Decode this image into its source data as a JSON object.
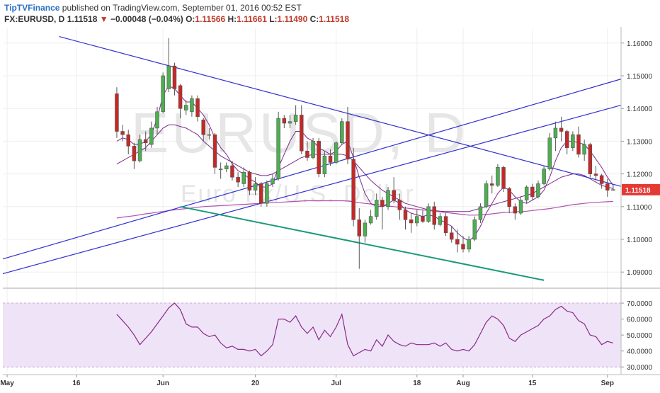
{
  "header": {
    "author": "TipTVFinance",
    "published_text": " published on TradingView.com, September 01, 2016 00:52 EST",
    "symbol": "FX:EURUSD, D",
    "last": "1.11518",
    "change_arrow": "▼",
    "change": "−0.00048 (−0.04%)",
    "o_label": "O:",
    "o_value": "1.11566",
    "h_label": "H:",
    "h_value": "1.11661",
    "l_label": "L:",
    "l_value": "1.11490",
    "c_label": "C:",
    "c_value": "1.11518"
  },
  "watermark": {
    "main": "EURUSD, D",
    "sub": "Euro Fx/U.S. Dollar"
  },
  "colors": {
    "up": "#4caf50",
    "down": "#c62828",
    "trend_blue": "#3030d0",
    "trend_green": "#1a9a7a",
    "ma_fast": "#7a2a8a",
    "ma_slow": "#b050b0",
    "rsi_line": "#8a2a8a",
    "rsi_band": "#efe3f7",
    "price_badge": "#e53935"
  },
  "chart_data": {
    "type": "candlestick",
    "price_axis": {
      "ticks": [
        "1.16000",
        "1.15000",
        "1.14000",
        "1.13000",
        "1.12000",
        "1.11000",
        "1.10000",
        "1.09000"
      ],
      "tick_values": [
        1.16,
        1.15,
        1.14,
        1.13,
        1.12,
        1.11,
        1.1,
        1.09
      ],
      "range": [
        1.0855,
        1.1645
      ],
      "current_label": "1.11518",
      "current_value": 1.11518
    },
    "x_axis": {
      "labels": [
        "May",
        "16",
        "Jun",
        "20",
        "Jul",
        "18",
        "Aug",
        "15",
        "Sep"
      ],
      "label_index": [
        0,
        12,
        27,
        43,
        57,
        71,
        79,
        91,
        104
      ]
    },
    "ohlc": [
      [
        1.1445,
        1.1465,
        1.131,
        1.133
      ],
      [
        1.133,
        1.135,
        1.13,
        1.132
      ],
      [
        1.132,
        1.1335,
        1.126,
        1.1285
      ],
      [
        1.1285,
        1.1295,
        1.1215,
        1.124
      ],
      [
        1.124,
        1.132,
        1.1235,
        1.1305
      ],
      [
        1.1305,
        1.133,
        1.127,
        1.1295
      ],
      [
        1.129,
        1.136,
        1.128,
        1.134
      ],
      [
        1.134,
        1.1405,
        1.132,
        1.139
      ],
      [
        1.139,
        1.151,
        1.1385,
        1.15
      ],
      [
        1.146,
        1.1615,
        1.145,
        1.153
      ],
      [
        1.153,
        1.154,
        1.144,
        1.146
      ],
      [
        1.147,
        1.1475,
        1.137,
        1.14
      ],
      [
        1.1395,
        1.1425,
        1.138,
        1.141
      ],
      [
        1.139,
        1.144,
        1.1375,
        1.143
      ],
      [
        1.143,
        1.144,
        1.136,
        1.1375
      ],
      [
        1.1365,
        1.137,
        1.13,
        1.132
      ],
      [
        1.132,
        1.134,
        1.1305,
        1.132
      ],
      [
        1.132,
        1.1325,
        1.12,
        1.122
      ],
      [
        1.1215,
        1.1235,
        1.1185,
        1.1215
      ],
      [
        1.1215,
        1.1235,
        1.1205,
        1.1225
      ],
      [
        1.1225,
        1.124,
        1.118,
        1.119
      ],
      [
        1.119,
        1.1205,
        1.116,
        1.1175
      ],
      [
        1.117,
        1.122,
        1.116,
        1.1205
      ],
      [
        1.1205,
        1.121,
        1.1135,
        1.115
      ],
      [
        1.115,
        1.119,
        1.1135,
        1.117
      ],
      [
        1.117,
        1.1175,
        1.11,
        1.111
      ],
      [
        1.111,
        1.118,
        1.11,
        1.117
      ],
      [
        1.117,
        1.12,
        1.116,
        1.1185
      ],
      [
        1.1185,
        1.139,
        1.118,
        1.137
      ],
      [
        1.137,
        1.138,
        1.134,
        1.1355
      ],
      [
        1.1355,
        1.138,
        1.134,
        1.136
      ],
      [
        1.136,
        1.141,
        1.135,
        1.138
      ],
      [
        1.138,
        1.141,
        1.126,
        1.127
      ],
      [
        1.127,
        1.13,
        1.124,
        1.125
      ],
      [
        1.125,
        1.131,
        1.1245,
        1.13
      ],
      [
        1.13,
        1.131,
        1.119,
        1.12
      ],
      [
        1.12,
        1.127,
        1.119,
        1.1255
      ],
      [
        1.1255,
        1.1275,
        1.1225,
        1.1235
      ],
      [
        1.1235,
        1.13,
        1.123,
        1.1295
      ],
      [
        1.1295,
        1.137,
        1.129,
        1.136
      ],
      [
        1.136,
        1.1405,
        1.123,
        1.1245
      ],
      [
        1.1245,
        1.128,
        1.104,
        1.106
      ],
      [
        1.106,
        1.1095,
        1.091,
        1.101
      ],
      [
        1.101,
        1.106,
        1.099,
        1.105
      ],
      [
        1.105,
        1.109,
        1.1045,
        1.107
      ],
      [
        1.107,
        1.114,
        1.106,
        1.112
      ],
      [
        1.112,
        1.113,
        1.103,
        1.11
      ],
      [
        1.11,
        1.116,
        1.109,
        1.115
      ],
      [
        1.115,
        1.119,
        1.111,
        1.112
      ],
      [
        1.112,
        1.114,
        1.106,
        1.109
      ],
      [
        1.109,
        1.11,
        1.103,
        1.106
      ],
      [
        1.106,
        1.108,
        1.102,
        1.105
      ],
      [
        1.105,
        1.109,
        1.104,
        1.107
      ],
      [
        1.107,
        1.109,
        1.105,
        1.1055
      ],
      [
        1.1055,
        1.111,
        1.105,
        1.11
      ],
      [
        1.11,
        1.1115,
        1.103,
        1.1045
      ],
      [
        1.1045,
        1.108,
        1.104,
        1.107
      ],
      [
        1.107,
        1.108,
        1.101,
        1.102
      ],
      [
        1.102,
        1.104,
        1.099,
        1.1
      ],
      [
        1.1,
        1.103,
        1.096,
        1.0985
      ],
      [
        1.0985,
        1.101,
        1.096,
        1.097
      ],
      [
        1.097,
        1.101,
        1.096,
        1.1
      ],
      [
        1.1,
        1.107,
        1.0995,
        1.106
      ],
      [
        1.106,
        1.111,
        1.105,
        1.11
      ],
      [
        1.11,
        1.118,
        1.1095,
        1.117
      ],
      [
        1.117,
        1.1195,
        1.114,
        1.1165
      ],
      [
        1.1165,
        1.123,
        1.116,
        1.122
      ],
      [
        1.122,
        1.1225,
        1.1145,
        1.1155
      ],
      [
        1.1155,
        1.116,
        1.108,
        1.11
      ],
      [
        1.11,
        1.111,
        1.106,
        1.108
      ],
      [
        1.108,
        1.113,
        1.1075,
        1.112
      ],
      [
        1.112,
        1.1165,
        1.111,
        1.116
      ],
      [
        1.116,
        1.117,
        1.112,
        1.113
      ],
      [
        1.113,
        1.118,
        1.1125,
        1.117
      ],
      [
        1.117,
        1.1225,
        1.1165,
        1.1215
      ],
      [
        1.1215,
        1.1325,
        1.121,
        1.131
      ],
      [
        1.131,
        1.136,
        1.127,
        1.134
      ],
      [
        1.134,
        1.1375,
        1.13,
        1.133
      ],
      [
        1.133,
        1.1335,
        1.126,
        1.128
      ],
      [
        1.128,
        1.133,
        1.127,
        1.132
      ],
      [
        1.132,
        1.1345,
        1.125,
        1.126
      ],
      [
        1.126,
        1.1305,
        1.124,
        1.129
      ],
      [
        1.129,
        1.1295,
        1.119,
        1.12
      ],
      [
        1.12,
        1.1225,
        1.118,
        1.1195
      ],
      [
        1.1195,
        1.12,
        1.1155,
        1.117
      ],
      [
        1.117,
        1.1185,
        1.113,
        1.115
      ],
      [
        1.115,
        1.1166,
        1.1149,
        1.1152
      ]
    ],
    "ma_fast": [
      1.13,
      1.131,
      1.1305,
      1.129,
      1.129,
      1.13,
      1.132,
      1.137,
      1.144,
      1.147,
      1.146,
      1.144,
      1.142,
      1.142,
      1.14,
      1.138,
      1.135,
      1.131,
      1.128,
      1.126,
      1.123,
      1.121,
      1.12,
      1.1185,
      1.1175,
      1.116,
      1.116,
      1.117,
      1.122,
      1.126,
      1.13,
      1.133,
      1.133,
      1.131,
      1.13,
      1.128,
      1.127,
      1.126,
      1.127,
      1.129,
      1.13,
      1.125,
      1.119,
      1.114,
      1.111,
      1.11,
      1.11,
      1.111,
      1.112,
      1.111,
      1.109,
      1.108,
      1.1075,
      1.107,
      1.1075,
      1.107,
      1.106,
      1.105,
      1.104,
      1.102,
      1.1005,
      1.0995,
      1.101,
      1.104,
      1.108,
      1.111,
      1.114,
      1.116,
      1.115,
      1.113,
      1.1115,
      1.111,
      1.112,
      1.113,
      1.115,
      1.119,
      1.124,
      1.128,
      1.13,
      1.13,
      1.1295,
      1.129,
      1.127,
      1.1245,
      1.122,
      1.119,
      1.1165
    ],
    "ma_mid": [
      1.123,
      1.124,
      1.125,
      1.126,
      1.127,
      1.128,
      1.13,
      1.132,
      1.134,
      1.135,
      1.135,
      1.1345,
      1.134,
      1.133,
      1.132,
      1.13,
      1.1285,
      1.127,
      1.1255,
      1.1245,
      1.1235,
      1.1225,
      1.1215,
      1.1205,
      1.12,
      1.1195,
      1.1195,
      1.12,
      1.121,
      1.122,
      1.123,
      1.124,
      1.125,
      1.1255,
      1.126,
      1.126,
      1.126,
      1.126,
      1.126,
      1.126,
      1.1255,
      1.124,
      1.122,
      1.12,
      1.118,
      1.1165,
      1.115,
      1.114,
      1.113,
      1.112,
      1.111,
      1.1105,
      1.11,
      1.1095,
      1.109,
      1.1088,
      1.1086,
      1.1085,
      1.1085,
      1.1085,
      1.1085,
      1.1085,
      1.109,
      1.1095,
      1.11,
      1.1105,
      1.111,
      1.1115,
      1.112,
      1.1125,
      1.113,
      1.1135,
      1.114,
      1.115,
      1.116,
      1.117,
      1.118,
      1.119,
      1.1195,
      1.12,
      1.12,
      1.1195,
      1.1185,
      1.1175,
      1.1165,
      1.116,
      1.1155
    ],
    "ma_slow": [
      1.1065,
      1.1068,
      1.107,
      1.1072,
      1.1075,
      1.1078,
      1.108,
      1.1083,
      1.1085,
      1.1088,
      1.109,
      1.1092,
      1.1094,
      1.1096,
      1.1098,
      1.11,
      1.1101,
      1.1102,
      1.1103,
      1.1104,
      1.1105,
      1.1106,
      1.1107,
      1.1108,
      1.1109,
      1.111,
      1.1111,
      1.1112,
      1.1113,
      1.1114,
      1.1115,
      1.1116,
      1.1117,
      1.1118,
      1.1118,
      1.1118,
      1.1118,
      1.1118,
      1.1118,
      1.1118,
      1.1117,
      1.1115,
      1.1112,
      1.111,
      1.1108,
      1.1106,
      1.1104,
      1.1102,
      1.11,
      1.1098,
      1.1096,
      1.1094,
      1.1092,
      1.109,
      1.1088,
      1.1086,
      1.1084,
      1.1082,
      1.108,
      1.1078,
      1.1076,
      1.1074,
      1.1074,
      1.1075,
      1.1076,
      1.1078,
      1.108,
      1.1082,
      1.1083,
      1.1084,
      1.1085,
      1.1086,
      1.1088,
      1.109,
      1.1092,
      1.1094,
      1.1097,
      1.11,
      1.1103,
      1.1106,
      1.1108,
      1.111,
      1.1112,
      1.1113,
      1.1114,
      1.1115,
      1.1116
    ],
    "trendlines": [
      {
        "color": "blue",
        "from": [
          9,
          1.162
        ],
        "to": [
          105,
          1.1162
        ]
      },
      {
        "color": "blue",
        "from": [
          -1,
          1.0895
        ],
        "to": [
          105,
          1.141
        ]
      },
      {
        "color": "blue",
        "from": [
          -1,
          1.094
        ],
        "to": [
          105,
          1.149
        ]
      },
      {
        "color": "green",
        "from": [
          30,
          1.11
        ],
        "to": [
          93,
          1.0875
        ]
      }
    ],
    "rsi": {
      "ticks": [
        "70.0000",
        "60.0000",
        "50.0000",
        "40.0000",
        "30.0000"
      ],
      "tick_values": [
        70,
        60,
        50,
        40,
        30
      ],
      "range": [
        27,
        78
      ],
      "band": [
        30,
        70
      ],
      "values": [
        63,
        59,
        55,
        50,
        44,
        48,
        52,
        57,
        62,
        67,
        70,
        66,
        57,
        55,
        55,
        51,
        49,
        50,
        45,
        42,
        43,
        41,
        41,
        40,
        41,
        37,
        40,
        44,
        60,
        60,
        58,
        62,
        55,
        51,
        55,
        47,
        53,
        49,
        55,
        63,
        44,
        37,
        39,
        41,
        40,
        47,
        43,
        50,
        46,
        44,
        43,
        45,
        44,
        44,
        44,
        45,
        43,
        45,
        41,
        40,
        41,
        40,
        44,
        51,
        58,
        62,
        60,
        56,
        48,
        46,
        50,
        52,
        54,
        56,
        60,
        62,
        66,
        68,
        65,
        64,
        59,
        57,
        50,
        49,
        44,
        46,
        45
      ]
    }
  }
}
